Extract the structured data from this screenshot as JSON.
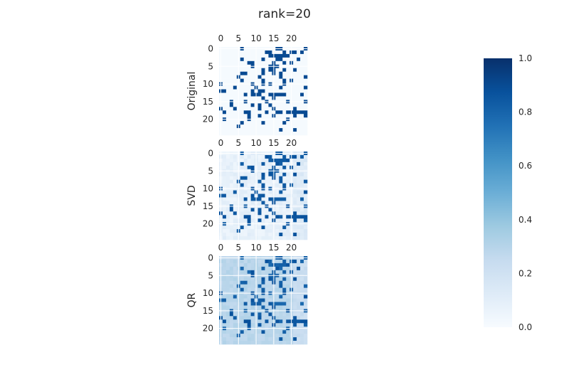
{
  "chart_data": {
    "type": "heatmap",
    "title": "rank=20",
    "colormap": "Blues",
    "grid": true,
    "size": 25,
    "tick_labels": [
      "0",
      "5",
      "10",
      "15",
      "20"
    ],
    "tick_values": [
      0,
      5,
      10,
      15,
      20
    ],
    "colorbar": {
      "range": [
        0.0,
        1.0
      ],
      "ticks": [
        "0.0",
        "0.2",
        "0.4",
        "0.6",
        "0.8",
        "1.0"
      ],
      "tick_values": [
        0.0,
        0.2,
        0.4,
        0.6,
        0.8,
        1.0
      ]
    },
    "panels": [
      {
        "name": "Original",
        "rows": [
          "0000001000000000110000001",
          "0000000000000110001011010",
          "0000000000000011111100000",
          "0000001000001000110000100",
          "0000000011000001001010000",
          "0000000001000011100000000",
          "0000000000001011001001000",
          "0000001100001001010000000",
          "0000010000010000010000001",
          "0000001000001000001010000",
          "1000000001001010001000000",
          "0000100000100000010000001",
          "1100000001011000000000000",
          "0000000101110011111000010",
          "0000000000001001000000000",
          "0001000100000100000100001",
          "0001000001010010000000000",
          "1000100000010001000001000",
          "0100000110000100110111111",
          "0000000010010001000001001",
          "0100000010000000000100000",
          "0000001000001000001000000",
          "0000010000000000000000000",
          "0000000000000000010001000",
          "0000000000000000000000000"
        ]
      },
      {
        "name": "SVD",
        "rows": [
          "0000001000000000110000001",
          "0000000000000110001011010",
          "0000000000000011111100000",
          "0000001000001000110000100",
          "0000000011000001001010000",
          "0000000001000011100000000",
          "0000000000001011001001000",
          "0000001100001001010000000",
          "0000010000010000010000001",
          "0000001000001000001010000",
          "1000000001001010001000000",
          "0000100000100000010000001",
          "1100000001011000000000000",
          "0000000101110011111000010",
          "0000000000001001000000000",
          "0001000100000100000100001",
          "0001000001010010000000000",
          "1000100000010001000001000",
          "0100000110000100110111111",
          "0000000010010001000001001",
          "0100000010000000000100000",
          "0000001000001000001000000",
          "0000010000000000000000000",
          "0000000000000000010001000",
          "0000000000000000000000000"
        ]
      },
      {
        "name": "QR",
        "rows": [
          "0000001000000000110000001",
          "0000000000000110001011010",
          "0000000000000011111100000",
          "0000001000001000110000100",
          "0000000011000001001010000",
          "0000000001000011100000000",
          "0000000000001011001001000",
          "0000001100001001010000000",
          "0000010000010000010000001",
          "0000001000001000001010000",
          "1000000001001010001000000",
          "0000100000100000010000001",
          "1100000001011000000000000",
          "0000000101110011111000010",
          "0000000000001001000000000",
          "0001000100000100000100001",
          "0001000001010010000000000",
          "1000100000010001000001000",
          "0100000110000100110111111",
          "0000000010010001000001001",
          "0100000010000000000100000",
          "0000001000001000001000000",
          "0000010000000000000000000",
          "0000000000000000010001000",
          "0000000000000000000000000"
        ]
      }
    ]
  }
}
